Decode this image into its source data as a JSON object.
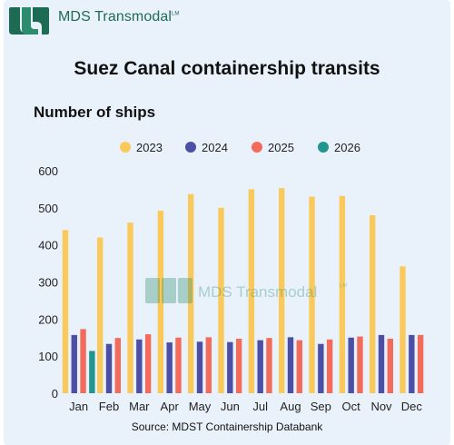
{
  "header": {
    "brand_name": "MDS Transmodal",
    "brand_mark": "LM",
    "logo_icon": "mds-logo-icon",
    "colors": {
      "brand_dark": "#1e6b53",
      "brand_light": "#2e8c6e"
    }
  },
  "watermark": {
    "text": "MDS Transmodal",
    "mark": "LM"
  },
  "chart_data": {
    "type": "bar",
    "title": "Suez Canal containership transits",
    "subtitle": "Number of ships",
    "source": "Source: MDST Containership Databank",
    "categories": [
      "Jan",
      "Feb",
      "Mar",
      "Apr",
      "May",
      "Jun",
      "Jul",
      "Aug",
      "Sep",
      "Oct",
      "Nov",
      "Dec"
    ],
    "series": [
      {
        "name": "2023",
        "color": "#f9c95b",
        "values": [
          440,
          420,
          460,
          492,
          537,
          500,
          550,
          553,
          530,
          532,
          480,
          342
        ]
      },
      {
        "name": "2024",
        "color": "#4b4fa6",
        "values": [
          157,
          133,
          145,
          137,
          139,
          138,
          143,
          151,
          133,
          150,
          157,
          157
        ]
      },
      {
        "name": "2025",
        "color": "#f26b5b",
        "values": [
          173,
          149,
          159,
          150,
          151,
          147,
          149,
          143,
          145,
          153,
          147,
          157
        ]
      },
      {
        "name": "2026",
        "color": "#23958f",
        "values": [
          114,
          null,
          null,
          null,
          null,
          null,
          null,
          null,
          null,
          null,
          null,
          null
        ]
      }
    ],
    "ylim": [
      0,
      600
    ],
    "yticks": [
      0,
      100,
      200,
      300,
      400,
      500,
      600
    ],
    "grid": false,
    "legend_position": "top"
  }
}
